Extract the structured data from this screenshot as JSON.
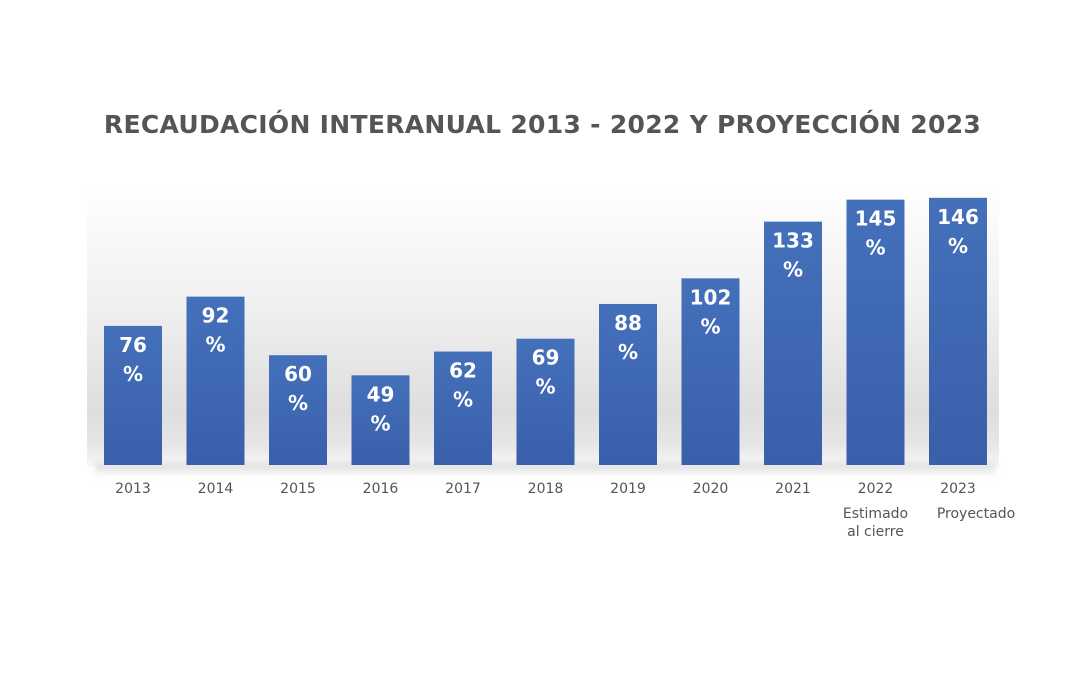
{
  "chart_data": {
    "type": "bar",
    "title": "RECAUDACIÓN INTERANUAL 2013 - 2022 Y PROYECCIÓN 2023",
    "categories": [
      "2013",
      "2014",
      "2015",
      "2016",
      "2017",
      "2018",
      "2019",
      "2020",
      "2021",
      "2022",
      "2023"
    ],
    "category_sublabels": [
      "",
      "",
      "",
      "",
      "",
      "",
      "",
      "",
      "",
      "Estimado al cierre",
      "Proyectado"
    ],
    "values": [
      76,
      92,
      60,
      49,
      62,
      69,
      88,
      102,
      133,
      145,
      146
    ],
    "value_suffix": "%",
    "ylim": [
      0,
      150
    ],
    "grid": false,
    "legend": "none",
    "bar_color": "#3f68b4",
    "xlabel": "",
    "ylabel": ""
  }
}
